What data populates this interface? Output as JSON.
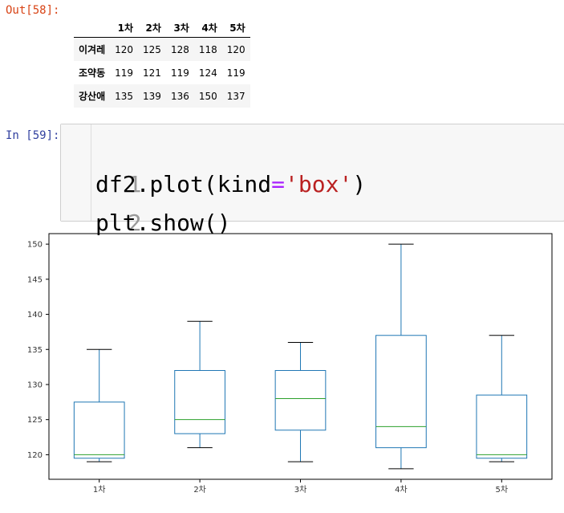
{
  "out_prompt": "Out[58]:",
  "in_prompt": "In [59]:",
  "table": {
    "columns": [
      "",
      "1차",
      "2차",
      "3차",
      "4차",
      "5차"
    ],
    "rows": [
      {
        "label": "이겨레",
        "values": [
          "120",
          "125",
          "128",
          "118",
          "120"
        ]
      },
      {
        "label": "조약동",
        "values": [
          "119",
          "121",
          "119",
          "124",
          "119"
        ]
      },
      {
        "label": "강산애",
        "values": [
          "135",
          "139",
          "136",
          "150",
          "137"
        ]
      }
    ]
  },
  "code": {
    "line_numbers": [
      "1",
      "2"
    ],
    "line1": {
      "a": "df2.plot(kind",
      "op": "=",
      "str": "'box'",
      "b": ")"
    },
    "line2": "plt.show()"
  },
  "chart_data": {
    "type": "box",
    "categories": [
      "1차",
      "2차",
      "3차",
      "4차",
      "5차"
    ],
    "boxes": [
      {
        "min": 119,
        "q1": 119.5,
        "median": 120,
        "q3": 127.5,
        "max": 135
      },
      {
        "min": 121,
        "q1": 123,
        "median": 125,
        "q3": 132,
        "max": 139
      },
      {
        "min": 119,
        "q1": 123.5,
        "median": 128,
        "q3": 132,
        "max": 136
      },
      {
        "min": 118,
        "q1": 121,
        "median": 124,
        "q3": 137,
        "max": 150
      },
      {
        "min": 119,
        "q1": 119.5,
        "median": 120,
        "q3": 128.5,
        "max": 137
      }
    ],
    "yticks": [
      120,
      125,
      130,
      135,
      140,
      145,
      150
    ],
    "ylim": [
      116.5,
      151.5
    ],
    "colors": {
      "box": "#1f77b4",
      "median": "#2ca02c",
      "whisker": "#1f77b4",
      "cap": "#000000"
    }
  }
}
